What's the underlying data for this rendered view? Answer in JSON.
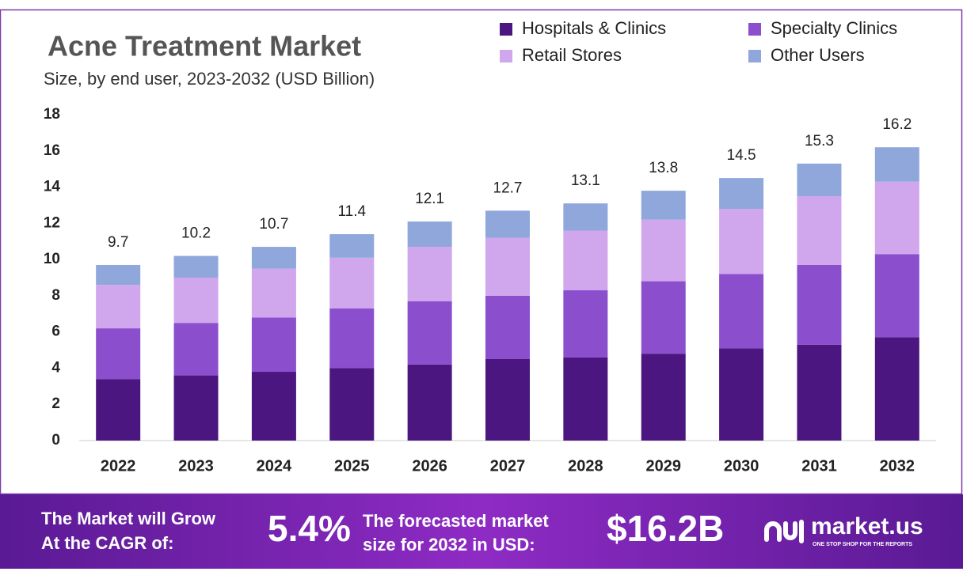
{
  "chart_data": {
    "type": "stacked_bar",
    "title": "Acne Treatment Market",
    "subtitle": "Size, by end user, 2023-2032 (USD Billion)",
    "categories": [
      "2022",
      "2023",
      "2024",
      "2025",
      "2026",
      "2027",
      "2028",
      "2029",
      "2030",
      "2031",
      "2032"
    ],
    "series": [
      {
        "name": "Hospitals & Clinics",
        "color": "#4b1680",
        "values": [
          3.4,
          3.6,
          3.8,
          4.0,
          4.2,
          4.5,
          4.6,
          4.8,
          5.1,
          5.3,
          5.7
        ]
      },
      {
        "name": "Specialty Clinics",
        "color": "#8b4fce",
        "values": [
          2.8,
          2.9,
          3.0,
          3.3,
          3.5,
          3.5,
          3.7,
          4.0,
          4.1,
          4.4,
          4.6
        ]
      },
      {
        "name": "Retail Stores",
        "color": "#d0a6ec",
        "values": [
          2.4,
          2.5,
          2.7,
          2.8,
          3.0,
          3.2,
          3.3,
          3.4,
          3.6,
          3.8,
          4.0
        ]
      },
      {
        "name": "Other Users",
        "color": "#8fa7db",
        "values": [
          1.1,
          1.2,
          1.2,
          1.3,
          1.4,
          1.5,
          1.5,
          1.6,
          1.7,
          1.8,
          1.9
        ]
      }
    ],
    "totals": [
      9.7,
      10.2,
      10.7,
      11.4,
      12.1,
      12.7,
      13.1,
      13.8,
      14.5,
      15.3,
      16.2
    ],
    "ylim": [
      0,
      18
    ],
    "yticks": [
      0,
      2,
      4,
      6,
      8,
      10,
      12,
      14,
      16,
      18
    ],
    "grid": false,
    "legend": "top-right"
  },
  "footer": {
    "cagr_text": [
      "The Market will Grow",
      "At the CAGR of:"
    ],
    "cagr": "5.4%",
    "forecast_text": [
      "The forecasted market",
      "size for 2032 in USD:"
    ],
    "forecast": "$16.2B",
    "brand": "market.us",
    "tagline": "ONE STOP SHOP FOR THE REPORTS"
  }
}
